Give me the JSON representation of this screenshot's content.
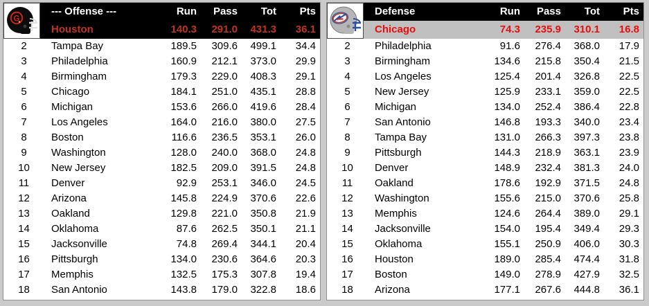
{
  "page": {
    "background": "#cacaca"
  },
  "columns": [
    "Run",
    "Pass",
    "Tot",
    "Pts"
  ],
  "offense": {
    "title": "--- Offense ---",
    "helmet_icon": "houston-gamblers-helmet",
    "leader_colors": {
      "bg": "#000000",
      "text": "#c23320"
    },
    "leader": {
      "team": "Houston",
      "run": "140.3",
      "pass": "291.0",
      "tot": "431.3",
      "pts": "36.1"
    },
    "rows": [
      {
        "rank": "2",
        "team": "Tampa Bay",
        "run": "189.5",
        "pass": "309.6",
        "tot": "499.1",
        "pts": "34.4"
      },
      {
        "rank": "3",
        "team": "Philadelphia",
        "run": "160.9",
        "pass": "212.1",
        "tot": "373.0",
        "pts": "29.9"
      },
      {
        "rank": "4",
        "team": "Birmingham",
        "run": "179.3",
        "pass": "229.0",
        "tot": "408.3",
        "pts": "29.1"
      },
      {
        "rank": "5",
        "team": "Chicago",
        "run": "184.1",
        "pass": "251.0",
        "tot": "435.1",
        "pts": "28.8"
      },
      {
        "rank": "6",
        "team": "Michigan",
        "run": "153.6",
        "pass": "266.0",
        "tot": "419.6",
        "pts": "28.4"
      },
      {
        "rank": "7",
        "team": "Los Angeles",
        "run": "164.0",
        "pass": "216.0",
        "tot": "380.0",
        "pts": "27.5"
      },
      {
        "rank": "8",
        "team": "Boston",
        "run": "116.6",
        "pass": "236.5",
        "tot": "353.1",
        "pts": "26.0"
      },
      {
        "rank": "9",
        "team": "Washington",
        "run": "128.0",
        "pass": "240.0",
        "tot": "368.0",
        "pts": "24.8"
      },
      {
        "rank": "10",
        "team": "New Jersey",
        "run": "182.5",
        "pass": "209.0",
        "tot": "391.5",
        "pts": "24.8"
      },
      {
        "rank": "11",
        "team": "Denver",
        "run": "92.9",
        "pass": "253.1",
        "tot": "346.0",
        "pts": "24.5"
      },
      {
        "rank": "12",
        "team": "Arizona",
        "run": "145.8",
        "pass": "224.9",
        "tot": "370.6",
        "pts": "22.6"
      },
      {
        "rank": "13",
        "team": "Oakland",
        "run": "129.8",
        "pass": "221.0",
        "tot": "350.8",
        "pts": "21.9"
      },
      {
        "rank": "14",
        "team": "Oklahoma",
        "run": "87.6",
        "pass": "262.5",
        "tot": "350.1",
        "pts": "21.1"
      },
      {
        "rank": "15",
        "team": "Jacksonville",
        "run": "74.8",
        "pass": "269.4",
        "tot": "344.1",
        "pts": "20.4"
      },
      {
        "rank": "16",
        "team": "Pittsburgh",
        "run": "134.0",
        "pass": "230.6",
        "tot": "364.6",
        "pts": "20.3"
      },
      {
        "rank": "17",
        "team": "Memphis",
        "run": "132.5",
        "pass": "175.3",
        "tot": "307.8",
        "pts": "19.4"
      },
      {
        "rank": "18",
        "team": "San Antonio",
        "run": "143.8",
        "pass": "179.0",
        "tot": "322.8",
        "pts": "18.6"
      }
    ]
  },
  "defense": {
    "title": "Defense",
    "helmet_icon": "chicago-blitz-helmet",
    "leader_colors": {
      "bg": "#c0c0c0",
      "text": "#e80e0e"
    },
    "leader": {
      "team": "Chicago",
      "run": "74.3",
      "pass": "235.9",
      "tot": "310.1",
      "pts": "16.8"
    },
    "rows": [
      {
        "rank": "2",
        "team": "Philadelphia",
        "run": "91.6",
        "pass": "276.4",
        "tot": "368.0",
        "pts": "17.9"
      },
      {
        "rank": "3",
        "team": "Birmingham",
        "run": "134.6",
        "pass": "215.8",
        "tot": "350.4",
        "pts": "21.5"
      },
      {
        "rank": "4",
        "team": "Los Angeles",
        "run": "125.4",
        "pass": "201.4",
        "tot": "326.8",
        "pts": "22.5"
      },
      {
        "rank": "5",
        "team": "New Jersey",
        "run": "125.9",
        "pass": "233.1",
        "tot": "359.0",
        "pts": "22.5"
      },
      {
        "rank": "6",
        "team": "Michigan",
        "run": "134.0",
        "pass": "252.4",
        "tot": "386.4",
        "pts": "22.8"
      },
      {
        "rank": "7",
        "team": "San Antonio",
        "run": "146.8",
        "pass": "193.3",
        "tot": "340.0",
        "pts": "23.4"
      },
      {
        "rank": "8",
        "team": "Tampa Bay",
        "run": "131.0",
        "pass": "266.3",
        "tot": "397.3",
        "pts": "23.8"
      },
      {
        "rank": "9",
        "team": "Pittsburgh",
        "run": "144.3",
        "pass": "218.9",
        "tot": "363.1",
        "pts": "23.9"
      },
      {
        "rank": "10",
        "team": "Denver",
        "run": "148.9",
        "pass": "232.4",
        "tot": "381.3",
        "pts": "24.0"
      },
      {
        "rank": "11",
        "team": "Oakland",
        "run": "178.6",
        "pass": "192.9",
        "tot": "371.5",
        "pts": "24.8"
      },
      {
        "rank": "12",
        "team": "Washington",
        "run": "155.6",
        "pass": "215.0",
        "tot": "370.6",
        "pts": "25.8"
      },
      {
        "rank": "13",
        "team": "Memphis",
        "run": "124.6",
        "pass": "264.4",
        "tot": "389.0",
        "pts": "29.1"
      },
      {
        "rank": "14",
        "team": "Jacksonville",
        "run": "154.0",
        "pass": "195.4",
        "tot": "349.4",
        "pts": "29.3"
      },
      {
        "rank": "15",
        "team": "Oklahoma",
        "run": "155.1",
        "pass": "250.9",
        "tot": "406.0",
        "pts": "30.3"
      },
      {
        "rank": "16",
        "team": "Houston",
        "run": "189.0",
        "pass": "285.4",
        "tot": "474.4",
        "pts": "31.8"
      },
      {
        "rank": "17",
        "team": "Boston",
        "run": "149.0",
        "pass": "278.9",
        "tot": "427.9",
        "pts": "32.5"
      },
      {
        "rank": "18",
        "team": "Arizona",
        "run": "177.1",
        "pass": "267.6",
        "tot": "444.8",
        "pts": "36.1"
      }
    ]
  }
}
